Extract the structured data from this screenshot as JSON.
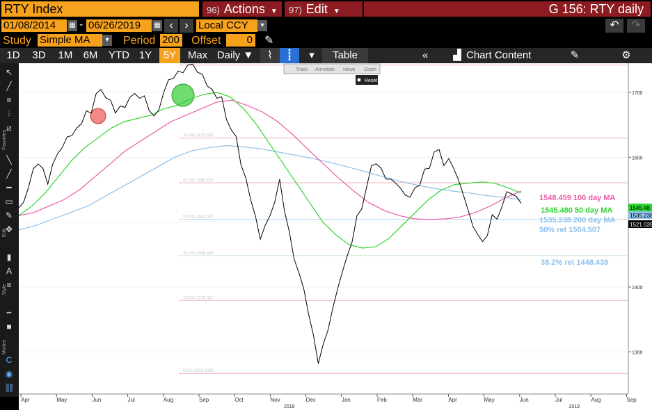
{
  "header": {
    "security": "RTY Index",
    "actions_num": "96)",
    "actions_label": "Actions",
    "edit_num": "97)",
    "edit_label": "Edit",
    "chart_name": "G 156: RTY daily"
  },
  "controls": {
    "start_date": "01/08/2014",
    "date_sep": "-",
    "end_date": "06/26/2019",
    "currency": "Local CCY",
    "study_label": "Study",
    "study_value": "Simple MA",
    "period_label": "Period",
    "period_value": "200",
    "offset_label": "Offset",
    "offset_value": "0"
  },
  "periods": [
    "1D",
    "3D",
    "1M",
    "6M",
    "YTD",
    "1Y",
    "5Y",
    "Max"
  ],
  "active_period": "5Y",
  "frequency": "Daily ▼",
  "table_label": "Table",
  "chart_content_label": "Chart Content",
  "mini_tools": [
    "Track",
    "Annotate",
    "News",
    "Zoom"
  ],
  "reset_label": "Reset",
  "sidebar_labels": {
    "favorites": "Favorites",
    "edit": "Edit",
    "style": "Style",
    "modes": "Modes"
  },
  "colors": {
    "price": "#000000",
    "ma100": "#ec5aa6",
    "ma50": "#2fd52f",
    "ma200": "#8ec0ea",
    "retracement_line": "#f3b3bb",
    "accent": "#f7a21c",
    "highlight_red": "#ee5555",
    "highlight_green": "#33cc33"
  },
  "chart_data": {
    "type": "line",
    "x_ticks": [
      "Apr",
      "May",
      "Jun",
      "Jul",
      "Aug",
      "Sep",
      "Oct",
      "Nov",
      "Dec",
      "Jan",
      "Feb",
      "Mar",
      "Apr",
      "May",
      "Jun",
      "Jul",
      "Aug",
      "Sep"
    ],
    "year_labels": [
      "2018",
      "2019"
    ],
    "y_ticks": [
      1300,
      1400,
      1500,
      1600,
      1700
    ],
    "ylim": [
      1235,
      1745
    ],
    "grid": true,
    "series": [
      {
        "name": "RTY",
        "values": [
          1530,
          1555,
          1585,
          1565,
          1605,
          1625,
          1650,
          1670,
          1690,
          1695,
          1665,
          1685,
          1700,
          1690,
          1670,
          1700,
          1715,
          1735,
          1742,
          1720,
          1708,
          1690,
          1650,
          1590,
          1530,
          1480,
          1510,
          1560,
          1490,
          1420,
          1350,
          1285,
          1330,
          1405,
          1450,
          1505,
          1560,
          1590,
          1560,
          1565,
          1540,
          1545,
          1585,
          1605,
          1595,
          1585,
          1538,
          1500,
          1470,
          1505,
          1528,
          1542,
          1521
        ]
      },
      {
        "name": "50 day MA",
        "values": [
          1510,
          1525,
          1545,
          1570,
          1595,
          1615,
          1630,
          1645,
          1655,
          1660,
          1665,
          1675,
          1680,
          1690,
          1697,
          1700,
          1693,
          1675,
          1650,
          1620,
          1590,
          1560,
          1530,
          1500,
          1480,
          1465,
          1460,
          1462,
          1475,
          1495,
          1515,
          1535,
          1550,
          1558,
          1560,
          1562,
          1560,
          1553,
          1545
        ]
      },
      {
        "name": "100 day MA",
        "values": [
          1510,
          1515,
          1525,
          1535,
          1550,
          1570,
          1590,
          1610,
          1625,
          1640,
          1655,
          1665,
          1675,
          1685,
          1688,
          1680,
          1670,
          1655,
          1635,
          1612,
          1590,
          1568,
          1548,
          1530,
          1518,
          1510,
          1505,
          1504,
          1505,
          1508,
          1515,
          1525,
          1538,
          1548
        ]
      },
      {
        "name": "200 day MA",
        "values": [
          1488,
          1495,
          1505,
          1515,
          1525,
          1540,
          1555,
          1570,
          1585,
          1600,
          1610,
          1615,
          1618,
          1616,
          1613,
          1608,
          1603,
          1598,
          1592,
          1585,
          1578,
          1570,
          1563,
          1557,
          1552,
          1548,
          1545,
          1541,
          1538,
          1535
        ]
      }
    ],
    "retracement_levels": [
      {
        "label": "100.0% 1742.108",
        "value": 1742.108
      },
      {
        "label": "76.4% 1629.559",
        "value": 1629.559
      },
      {
        "label": "61.8% 1560.676",
        "value": 1560.676
      },
      {
        "label": "50.0% 1504.507",
        "value": 1504.507
      },
      {
        "label": "38.2% 1448.438",
        "value": 1448.438
      },
      {
        "label": "23.6% 1379.367",
        "value": 1379.367
      },
      {
        "label": "0.0% 1266.9063",
        "value": 1266.9063
      }
    ],
    "annotations": [
      {
        "text": "1548.459 100 day MA",
        "color": "#ec5aa6"
      },
      {
        "text": "1545.480 50 day MA",
        "color": "#2fd52f"
      },
      {
        "text": "1535.238 200 day MA",
        "color": "#8ec0ea"
      },
      {
        "text": "50% ret 1504.507",
        "color": "#8ec0ea"
      },
      {
        "text": "38.2% ret 1448.438",
        "color": "#8ec0ea"
      }
    ],
    "price_tags": [
      {
        "text": "1545.48",
        "value": 1545.48,
        "color": "#2fd52f"
      },
      {
        "text": "1535.238",
        "value": 1535.238,
        "color": "#8ec0ea"
      },
      {
        "text": "1521.035",
        "value": 1521.035,
        "color": "#000000"
      }
    ]
  }
}
